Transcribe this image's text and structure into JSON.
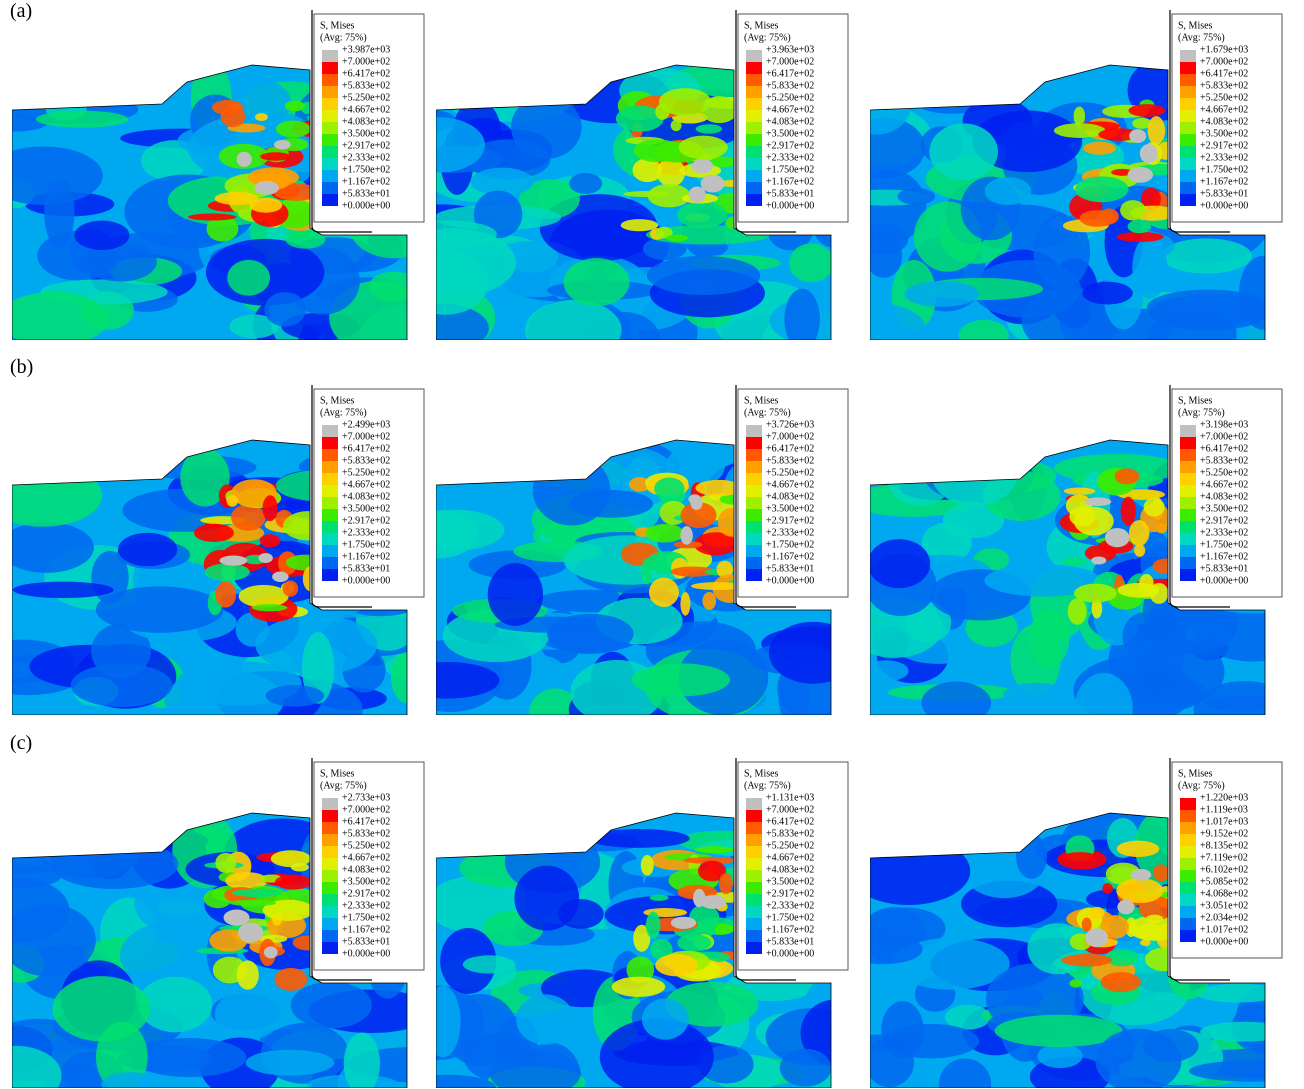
{
  "palette": [
    "#c0c0c0",
    "#ff0000",
    "#ff5a00",
    "#ffa000",
    "#ffd000",
    "#e0f000",
    "#9cf000",
    "#3cec00",
    "#00e070",
    "#00d8c0",
    "#00a8f0",
    "#0068f0",
    "#0020f0"
  ],
  "rows": [
    {
      "label": "(a)",
      "panels": [
        {
          "legend": {
            "title": "S, Mises",
            "subtitle": "(Avg: 75%)",
            "labels": [
              "+3.987e+03",
              "+7.000e+02",
              "+6.417e+02",
              "+5.833e+02",
              "+5.250e+02",
              "+4.667e+02",
              "+4.083e+02",
              "+3.500e+02",
              "+2.917e+02",
              "+2.333e+02",
              "+1.750e+02",
              "+1.167e+02",
              "+5.833e+01",
              "+0.000e+00"
            ]
          }
        },
        {
          "legend": {
            "title": "S, Mises",
            "subtitle": "(Avg: 75%)",
            "labels": [
              "+3.963e+03",
              "+7.000e+02",
              "+6.417e+02",
              "+5.833e+02",
              "+5.250e+02",
              "+4.667e+02",
              "+4.083e+02",
              "+3.500e+02",
              "+2.917e+02",
              "+2.333e+02",
              "+1.750e+02",
              "+1.167e+02",
              "+5.833e+01",
              "+0.000e+00"
            ]
          }
        },
        {
          "legend": {
            "title": "S, Mises",
            "subtitle": "(Avg: 75%)",
            "labels": [
              "+1.679e+03",
              "+7.000e+02",
              "+6.417e+02",
              "+5.833e+02",
              "+5.250e+02",
              "+4.667e+02",
              "+4.083e+02",
              "+3.500e+02",
              "+2.917e+02",
              "+2.333e+02",
              "+1.750e+02",
              "+1.167e+02",
              "+5.833e+01",
              "+0.000e+00"
            ]
          }
        }
      ]
    },
    {
      "label": "(b)",
      "panels": [
        {
          "legend": {
            "title": "S, Mises",
            "subtitle": "(Avg: 75%)",
            "labels": [
              "+2.499e+03",
              "+7.000e+02",
              "+6.417e+02",
              "+5.833e+02",
              "+5.250e+02",
              "+4.667e+02",
              "+4.083e+02",
              "+3.500e+02",
              "+2.917e+02",
              "+2.333e+02",
              "+1.750e+02",
              "+1.167e+02",
              "+5.833e+01",
              "+0.000e+00"
            ]
          }
        },
        {
          "legend": {
            "title": "S, Mises",
            "subtitle": "(Avg: 75%)",
            "labels": [
              "+3.726e+03",
              "+7.000e+02",
              "+6.417e+02",
              "+5.833e+02",
              "+5.250e+02",
              "+4.667e+02",
              "+4.083e+02",
              "+3.500e+02",
              "+2.917e+02",
              "+2.333e+02",
              "+1.750e+02",
              "+1.167e+02",
              "+5.833e+01",
              "+0.000e+00"
            ]
          }
        },
        {
          "legend": {
            "title": "S, Mises",
            "subtitle": "(Avg: 75%)",
            "labels": [
              "+3.198e+03",
              "+7.000e+02",
              "+6.417e+02",
              "+5.833e+02",
              "+5.250e+02",
              "+4.667e+02",
              "+4.083e+02",
              "+3.500e+02",
              "+2.917e+02",
              "+2.333e+02",
              "+1.750e+02",
              "+1.167e+02",
              "+5.833e+01",
              "+0.000e+00"
            ]
          }
        }
      ]
    },
    {
      "label": "(c)",
      "panels": [
        {
          "legend": {
            "title": "S, Mises",
            "subtitle": "(Avg: 75%)",
            "labels": [
              "+2.733e+03",
              "+7.000e+02",
              "+6.417e+02",
              "+5.833e+02",
              "+5.250e+02",
              "+4.667e+02",
              "+4.083e+02",
              "+3.500e+02",
              "+2.917e+02",
              "+2.333e+02",
              "+1.750e+02",
              "+1.167e+02",
              "+5.833e+01",
              "+0.000e+00"
            ]
          }
        },
        {
          "legend": {
            "title": "S, Mises",
            "subtitle": "(Avg: 75%)",
            "labels": [
              "+1.131e+03",
              "+7.000e+02",
              "+6.417e+02",
              "+5.833e+02",
              "+5.250e+02",
              "+4.667e+02",
              "+4.083e+02",
              "+3.500e+02",
              "+2.917e+02",
              "+2.333e+02",
              "+1.750e+02",
              "+1.167e+02",
              "+5.833e+01",
              "+0.000e+00"
            ]
          }
        },
        {
          "legend": {
            "title": "S, Mises",
            "subtitle": "(Avg: 75%)",
            "labels": [
              "+1.220e+03",
              "+1.119e+03",
              "+1.017e+03",
              "+9.152e+02",
              "+8.135e+02",
              "+7.119e+02",
              "+6.102e+02",
              "+5.085e+02",
              "+4.068e+02",
              "+3.051e+02",
              "+2.034e+02",
              "+1.017e+02",
              "+0.000e+00"
            ]
          }
        }
      ]
    }
  ]
}
